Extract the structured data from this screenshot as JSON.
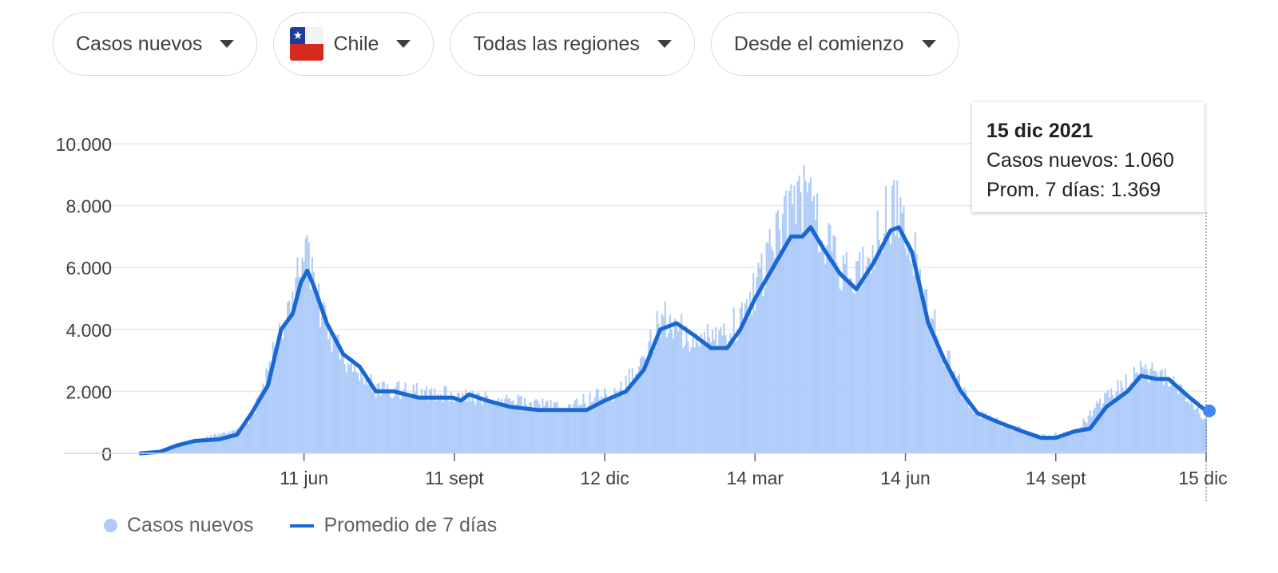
{
  "filters": {
    "metric": "Casos nuevos",
    "country": "Chile",
    "region": "Todas las regiones",
    "period": "Desde el comienzo"
  },
  "legend": {
    "bars": "Casos nuevos",
    "line": "Promedio de 7 días"
  },
  "tooltip": {
    "date": "15 dic 2021",
    "cases": "Casos nuevos: 1.060",
    "avg": "Prom. 7 días: 1.369"
  },
  "colors": {
    "bars": "#aecbfa",
    "line": "#1967d2",
    "point": "#4285f4",
    "grid": "#e8eaed"
  },
  "chart_data": {
    "type": "bar",
    "ylim": [
      0,
      10000
    ],
    "yticks": [
      0,
      2000,
      4000,
      6000,
      8000,
      10000
    ],
    "ytick_labels": [
      "0",
      "2.000",
      "4.000",
      "6.000",
      "8.000",
      "10.000"
    ],
    "xticks": [
      "2020-06-11",
      "2020-09-11",
      "2020-12-12",
      "2021-03-14",
      "2021-06-14",
      "2021-09-14",
      "2021-12-15"
    ],
    "xtick_labels": [
      "11 jun",
      "11 sept",
      "12 dic",
      "14 mar",
      "14 jun",
      "14 sept",
      "15 dic"
    ],
    "xlim": [
      "2020-03-03",
      "2021-12-15"
    ],
    "series": [
      {
        "type": "line",
        "points": [
          [
            "2020-03-03",
            0
          ],
          [
            "2020-03-15",
            50
          ],
          [
            "2020-03-25",
            250
          ],
          [
            "2020-04-05",
            400
          ],
          [
            "2020-04-20",
            450
          ],
          [
            "2020-05-01",
            600
          ],
          [
            "2020-05-10",
            1300
          ],
          [
            "2020-05-20",
            2200
          ],
          [
            "2020-05-28",
            4000
          ],
          [
            "2020-06-04",
            4500
          ],
          [
            "2020-06-09",
            5500
          ],
          [
            "2020-06-13",
            5900
          ],
          [
            "2020-06-17",
            5400
          ],
          [
            "2020-06-25",
            4200
          ],
          [
            "2020-07-05",
            3200
          ],
          [
            "2020-07-15",
            2800
          ],
          [
            "2020-07-25",
            2000
          ],
          [
            "2020-08-05",
            2000
          ],
          [
            "2020-08-20",
            1800
          ],
          [
            "2020-09-01",
            1800
          ],
          [
            "2020-09-10",
            1800
          ],
          [
            "2020-09-15",
            1700
          ],
          [
            "2020-09-20",
            1900
          ],
          [
            "2020-10-01",
            1700
          ],
          [
            "2020-10-15",
            1500
          ],
          [
            "2020-11-01",
            1400
          ],
          [
            "2020-11-15",
            1400
          ],
          [
            "2020-12-01",
            1400
          ],
          [
            "2020-12-12",
            1700
          ],
          [
            "2020-12-25",
            2000
          ],
          [
            "2021-01-05",
            2700
          ],
          [
            "2021-01-15",
            4000
          ],
          [
            "2021-01-25",
            4200
          ],
          [
            "2021-02-05",
            3800
          ],
          [
            "2021-02-15",
            3400
          ],
          [
            "2021-02-25",
            3400
          ],
          [
            "2021-03-05",
            4000
          ],
          [
            "2021-03-14",
            5000
          ],
          [
            "2021-03-25",
            6000
          ],
          [
            "2021-04-05",
            7000
          ],
          [
            "2021-04-12",
            7000
          ],
          [
            "2021-04-17",
            7300
          ],
          [
            "2021-04-25",
            6600
          ],
          [
            "2021-05-05",
            5800
          ],
          [
            "2021-05-15",
            5300
          ],
          [
            "2021-05-25",
            6100
          ],
          [
            "2021-06-05",
            7200
          ],
          [
            "2021-06-10",
            7300
          ],
          [
            "2021-06-18",
            6500
          ],
          [
            "2021-06-28",
            4200
          ],
          [
            "2021-07-08",
            3000
          ],
          [
            "2021-07-18",
            2000
          ],
          [
            "2021-07-28",
            1300
          ],
          [
            "2021-08-10",
            1000
          ],
          [
            "2021-08-25",
            700
          ],
          [
            "2021-09-05",
            500
          ],
          [
            "2021-09-14",
            500
          ],
          [
            "2021-09-25",
            700
          ],
          [
            "2021-10-05",
            800
          ],
          [
            "2021-10-15",
            1500
          ],
          [
            "2021-10-28",
            2000
          ],
          [
            "2021-11-05",
            2500
          ],
          [
            "2021-11-15",
            2400
          ],
          [
            "2021-11-22",
            2400
          ],
          [
            "2021-12-05",
            1800
          ],
          [
            "2021-12-15",
            1369
          ]
        ]
      },
      {
        "type": "bar",
        "points": [
          [
            "2020-03-03",
            0
          ],
          [
            "2020-03-20",
            150
          ],
          [
            "2020-04-10",
            450
          ],
          [
            "2020-05-05",
            800
          ],
          [
            "2020-05-15",
            1800
          ],
          [
            "2020-05-25",
            3500
          ],
          [
            "2020-06-02",
            4500
          ],
          [
            "2020-06-10",
            6700
          ],
          [
            "2020-06-15",
            5800
          ],
          [
            "2020-06-25",
            4000
          ],
          [
            "2020-07-10",
            2800
          ],
          [
            "2020-07-25",
            2100
          ],
          [
            "2020-09-10",
            1900
          ],
          [
            "2020-11-15",
            1500
          ],
          [
            "2020-12-20",
            2000
          ],
          [
            "2021-01-05",
            2900
          ],
          [
            "2021-01-15",
            4400
          ],
          [
            "2021-02-10",
            3600
          ],
          [
            "2021-03-05",
            4300
          ],
          [
            "2021-03-20",
            6000
          ],
          [
            "2021-04-05",
            7800
          ],
          [
            "2021-04-12",
            8400
          ],
          [
            "2021-04-20",
            7600
          ],
          [
            "2021-05-05",
            6000
          ],
          [
            "2021-05-15",
            5500
          ],
          [
            "2021-06-01",
            7400
          ],
          [
            "2021-06-08",
            8200
          ],
          [
            "2021-06-15",
            7200
          ],
          [
            "2021-06-28",
            4600
          ],
          [
            "2021-07-10",
            3000
          ],
          [
            "2021-07-25",
            1400
          ],
          [
            "2021-08-15",
            900
          ],
          [
            "2021-09-05",
            550
          ],
          [
            "2021-09-25",
            700
          ],
          [
            "2021-10-15",
            1800
          ],
          [
            "2021-11-05",
            2700
          ],
          [
            "2021-11-20",
            2500
          ],
          [
            "2021-12-05",
            1800
          ],
          [
            "2021-12-15",
            1060
          ]
        ]
      }
    ],
    "highlight": {
      "date": "2021-12-15",
      "cases": 1060,
      "avg": 1369
    }
  }
}
